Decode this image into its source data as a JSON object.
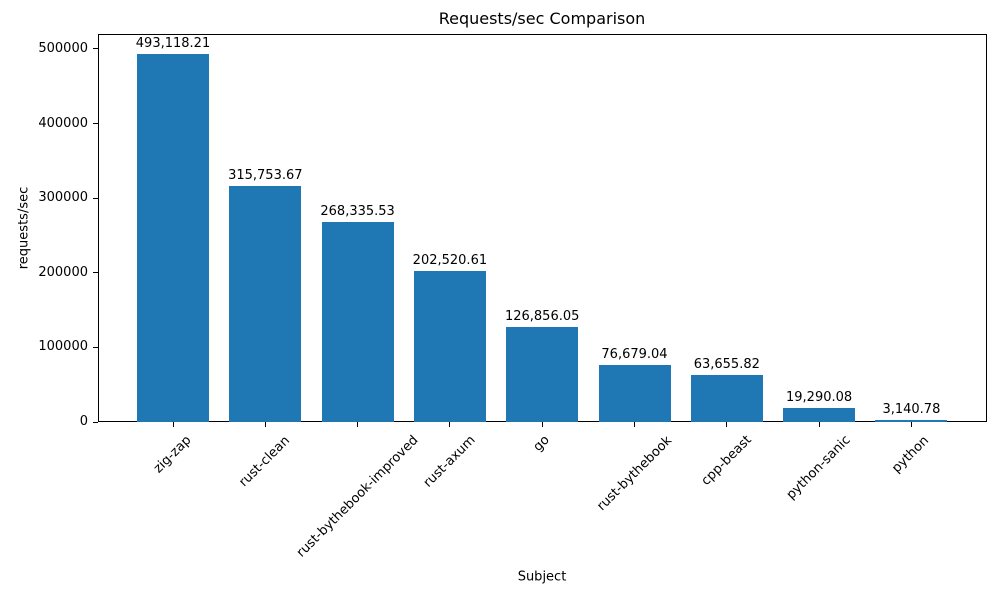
{
  "chart_data": {
    "type": "bar",
    "title": "Requests/sec Comparison",
    "xlabel": "Subject",
    "ylabel": "requests/sec",
    "categories": [
      "zig-zap",
      "rust-clean",
      "rust-bythebook-improved",
      "rust-axum",
      "go",
      "rust-bythebook",
      "cpp-beast",
      "python-sanic",
      "python"
    ],
    "values": [
      493118.21,
      315753.67,
      268335.53,
      202520.61,
      126856.05,
      76679.04,
      63655.82,
      19290.08,
      3140.78
    ],
    "bar_labels": [
      "493,118.21",
      "315,753.67",
      "268,335.53",
      "202,520.61",
      "126,856.05",
      "76,679.04",
      "63,655.82",
      "19,290.08",
      "3,140.78"
    ],
    "yticks": [
      0,
      100000,
      200000,
      300000,
      400000,
      500000
    ],
    "ylim": [
      0,
      520000
    ],
    "bar_color": "#1f77b4",
    "grid": false,
    "legend_position": "none",
    "xtick_rotation_deg": 45
  }
}
